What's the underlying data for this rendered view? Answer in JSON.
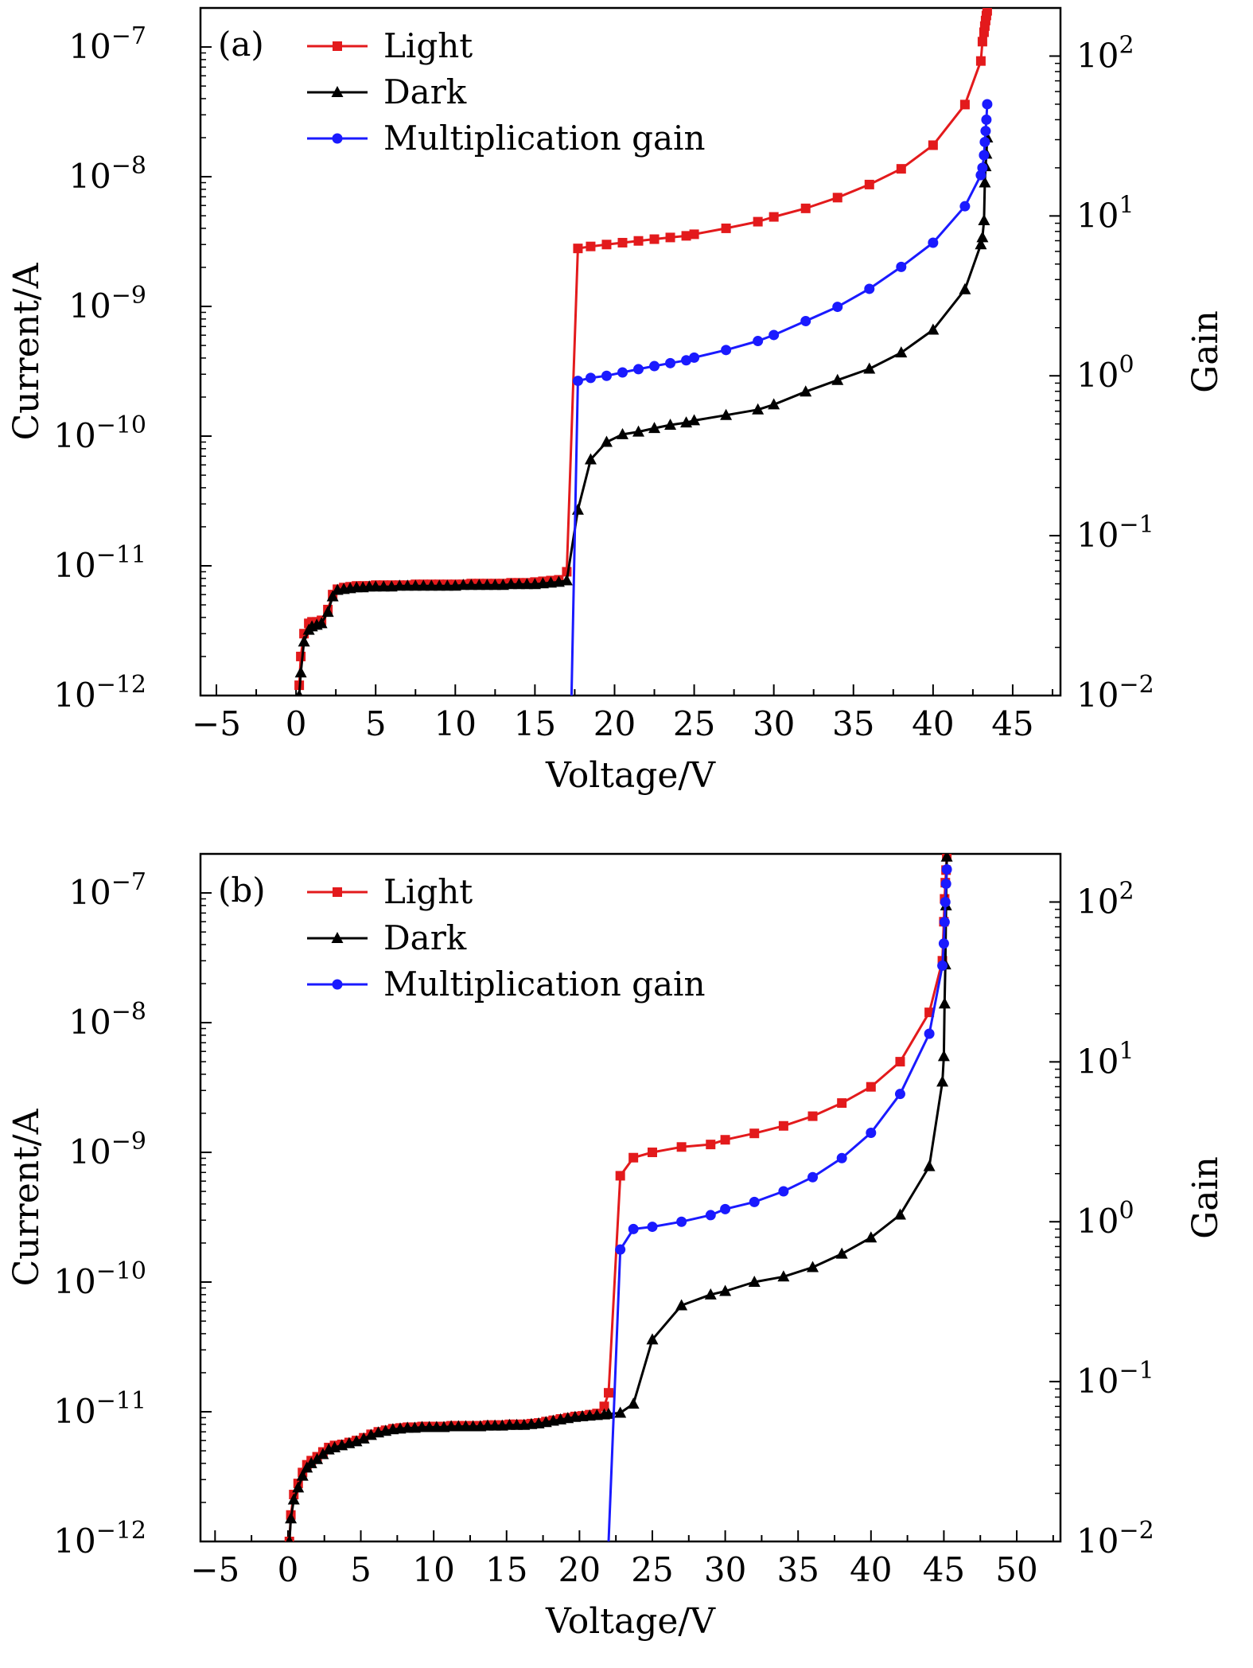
{
  "chart_data": [
    {
      "type": "line",
      "panel_label": "(a)",
      "xlabel": "Voltage/V",
      "ylabel": "Current/A",
      "y2label": "Gain",
      "xlim": [
        -6,
        48
      ],
      "xticks": [
        -5,
        0,
        5,
        10,
        15,
        20,
        25,
        30,
        35,
        40,
        45
      ],
      "xtick_labels": [
        "−5",
        "0",
        "5",
        "10",
        "15",
        "20",
        "25",
        "30",
        "35",
        "40",
        "45"
      ],
      "ylim": [
        1e-12,
        2e-07
      ],
      "yscale": "log",
      "yticks": [
        1e-12,
        1e-11,
        1e-10,
        1e-09,
        1e-08,
        1e-07
      ],
      "ytick_labels": [
        [
          "10",
          "−12"
        ],
        [
          "10",
          "−11"
        ],
        [
          "10",
          "−10"
        ],
        [
          "10",
          "−9"
        ],
        [
          "10",
          "−8"
        ],
        [
          "10",
          "−7"
        ]
      ],
      "y2lim": [
        0.01,
        200
      ],
      "y2scale": "log",
      "y2ticks": [
        0.01,
        0.1,
        1,
        10,
        100
      ],
      "y2tick_labels": [
        [
          "10",
          "−2"
        ],
        [
          "10",
          "−1"
        ],
        [
          "10",
          "0"
        ],
        [
          "10",
          "1"
        ],
        [
          "10",
          "2"
        ]
      ],
      "grid": false,
      "legend": "top-left",
      "series": [
        {
          "name": "Light",
          "color": "#e31a1c",
          "marker": "square",
          "axis": "left",
          "x": [
            0.2,
            0.3,
            0.5,
            0.8,
            1.0,
            1.3,
            1.6,
            2.0,
            2.3,
            2.6,
            3.0,
            3.4,
            3.8,
            4.2,
            4.6,
            5.0,
            5.5,
            6.0,
            6.5,
            7.0,
            7.5,
            8.0,
            8.5,
            9.0,
            9.5,
            10.0,
            10.5,
            11.0,
            11.5,
            12.0,
            12.5,
            13.0,
            13.5,
            14.0,
            14.5,
            15.0,
            15.5,
            16.0,
            16.5,
            17.0,
            17.7,
            18.5,
            19.5,
            20.5,
            21.5,
            22.5,
            23.5,
            24.5,
            25,
            27,
            29,
            30,
            32,
            34,
            36,
            38,
            40,
            42,
            43,
            43.1,
            43.2,
            43.25,
            43.3,
            43.35,
            43.4
          ],
          "y": [
            1.2e-12,
            2e-12,
            3e-12,
            3.6e-12,
            3.7e-12,
            3.7e-12,
            3.8e-12,
            4.6e-12,
            6e-12,
            6.6e-12,
            6.8e-12,
            6.9e-12,
            7e-12,
            7e-12,
            7e-12,
            7.1e-12,
            7.1e-12,
            7.1e-12,
            7.1e-12,
            7.1e-12,
            7.2e-12,
            7.2e-12,
            7.2e-12,
            7.2e-12,
            7.2e-12,
            7.2e-12,
            7.2e-12,
            7.3e-12,
            7.3e-12,
            7.3e-12,
            7.3e-12,
            7.3e-12,
            7.4e-12,
            7.4e-12,
            7.4e-12,
            7.5e-12,
            7.6e-12,
            7.7e-12,
            7.8e-12,
            9e-12,
            2.8e-09,
            2.9e-09,
            3e-09,
            3.1e-09,
            3.2e-09,
            3.3e-09,
            3.4e-09,
            3.5e-09,
            3.6e-09,
            4e-09,
            4.5e-09,
            4.9e-09,
            5.7e-09,
            6.9e-09,
            8.7e-09,
            1.15e-08,
            1.75e-08,
            3.6e-08,
            7.8e-08,
            1.1e-07,
            1.3e-07,
            1.45e-07,
            1.6e-07,
            1.75e-07,
            1.9e-07
          ]
        },
        {
          "name": "Dark",
          "color": "#000000",
          "marker": "triangle",
          "axis": "left",
          "x": [
            0.2,
            0.3,
            0.5,
            0.8,
            1.0,
            1.3,
            1.6,
            2.0,
            2.3,
            2.6,
            3.0,
            3.4,
            3.8,
            4.2,
            4.6,
            5.0,
            5.5,
            6.0,
            6.5,
            7.0,
            7.5,
            8.0,
            8.5,
            9.0,
            9.5,
            10.0,
            10.5,
            11.0,
            11.5,
            12.0,
            12.5,
            13.0,
            13.5,
            14.0,
            14.5,
            15.0,
            15.5,
            16.0,
            16.5,
            17.0,
            17.7,
            18.5,
            19.5,
            20.5,
            21.5,
            22.5,
            23.5,
            24.5,
            25,
            27,
            29,
            30,
            32,
            34,
            36,
            38,
            40,
            42,
            43,
            43.1,
            43.2,
            43.25,
            43.3,
            43.35,
            43.4
          ],
          "y": [
            1e-12,
            1.5e-12,
            2.6e-12,
            3.2e-12,
            3.4e-12,
            3.5e-12,
            3.6e-12,
            4.4e-12,
            5.8e-12,
            6.5e-12,
            6.6e-12,
            6.7e-12,
            6.8e-12,
            6.8e-12,
            6.9e-12,
            6.9e-12,
            6.9e-12,
            6.9e-12,
            7e-12,
            7e-12,
            7e-12,
            7e-12,
            7e-12,
            7e-12,
            7e-12,
            7e-12,
            7.1e-12,
            7.1e-12,
            7.1e-12,
            7.1e-12,
            7.1e-12,
            7.1e-12,
            7.2e-12,
            7.2e-12,
            7.2e-12,
            7.2e-12,
            7.3e-12,
            7.4e-12,
            7.5e-12,
            7.7e-12,
            2.7e-11,
            6.6e-11,
            9e-11,
            1.03e-10,
            1.08e-10,
            1.15e-10,
            1.22e-10,
            1.27e-10,
            1.32e-10,
            1.45e-10,
            1.6e-10,
            1.75e-10,
            2.2e-10,
            2.7e-10,
            3.3e-10,
            4.4e-10,
            6.6e-10,
            1.35e-09,
            3e-09,
            3.4e-09,
            4.6e-09,
            9e-09,
            1.2e-08,
            1.5e-08,
            2e-08
          ]
        },
        {
          "name": "Multiplication gain",
          "color": "#1a1aff",
          "marker": "circle",
          "axis": "right",
          "x": [
            17.3,
            17.7,
            18.5,
            19.5,
            20.5,
            21.5,
            22.5,
            23.5,
            24.5,
            25,
            27,
            29,
            30,
            32,
            34,
            36,
            38,
            40,
            42,
            43,
            43.1,
            43.2,
            43.25,
            43.3,
            43.35,
            43.4
          ],
          "y": [
            0.01,
            0.93,
            0.97,
            1.0,
            1.05,
            1.1,
            1.15,
            1.2,
            1.25,
            1.3,
            1.45,
            1.65,
            1.8,
            2.2,
            2.7,
            3.5,
            4.8,
            6.8,
            11.5,
            18,
            20,
            24,
            29,
            34,
            40,
            50
          ]
        }
      ]
    },
    {
      "type": "line",
      "panel_label": "(b)",
      "xlabel": "Voltage/V",
      "ylabel": "Current/A",
      "y2label": "Gain",
      "xlim": [
        -6,
        53
      ],
      "xticks": [
        -5,
        0,
        5,
        10,
        15,
        20,
        25,
        30,
        35,
        40,
        45,
        50
      ],
      "xtick_labels": [
        "−5",
        "0",
        "5",
        "10",
        "15",
        "20",
        "25",
        "30",
        "35",
        "40",
        "45",
        "50"
      ],
      "ylim": [
        1e-12,
        2e-07
      ],
      "yscale": "log",
      "yticks": [
        1e-12,
        1e-11,
        1e-10,
        1e-09,
        1e-08,
        1e-07
      ],
      "ytick_labels": [
        [
          "10",
          "−12"
        ],
        [
          "10",
          "−11"
        ],
        [
          "10",
          "−10"
        ],
        [
          "10",
          "−9"
        ],
        [
          "10",
          "−8"
        ],
        [
          "10",
          "−7"
        ]
      ],
      "y2lim": [
        0.01,
        200
      ],
      "y2scale": "log",
      "y2ticks": [
        0.01,
        0.1,
        1,
        10,
        100
      ],
      "y2tick_labels": [
        [
          "10",
          "−2"
        ],
        [
          "10",
          "−1"
        ],
        [
          "10",
          "0"
        ],
        [
          "10",
          "1"
        ],
        [
          "10",
          "2"
        ]
      ],
      "grid": false,
      "legend": "top-left",
      "series": [
        {
          "name": "Light",
          "color": "#e31a1c",
          "marker": "square",
          "axis": "left",
          "x": [
            0.1,
            0.2,
            0.4,
            0.7,
            1.0,
            1.3,
            1.6,
            2.0,
            2.4,
            2.8,
            3.2,
            3.7,
            4.2,
            4.7,
            5.2,
            5.7,
            6.2,
            6.7,
            7.2,
            7.7,
            8.2,
            8.7,
            9.2,
            9.7,
            10.2,
            10.7,
            11.2,
            11.7,
            12.2,
            12.7,
            13.2,
            13.7,
            14.2,
            14.7,
            15.2,
            15.7,
            16.2,
            16.7,
            17.2,
            17.7,
            18.2,
            18.7,
            19.2,
            19.7,
            20.2,
            20.7,
            21.2,
            21.7,
            22.0,
            22.8,
            23.7,
            25,
            27,
            29,
            30,
            32,
            34,
            36,
            38,
            40,
            42,
            44,
            44.9,
            45.0,
            45.05,
            45.1,
            45.15,
            45.2
          ],
          "y": [
            1e-12,
            1.6e-12,
            2.3e-12,
            2.8e-12,
            3.4e-12,
            3.9e-12,
            4.2e-12,
            4.5e-12,
            4.9e-12,
            5.3e-12,
            5.5e-12,
            5.6e-12,
            5.8e-12,
            6e-12,
            6.3e-12,
            6.7e-12,
            7e-12,
            7.2e-12,
            7.4e-12,
            7.5e-12,
            7.6e-12,
            7.6e-12,
            7.7e-12,
            7.7e-12,
            7.7e-12,
            7.7e-12,
            7.8e-12,
            7.8e-12,
            7.8e-12,
            7.8e-12,
            7.8e-12,
            7.9e-12,
            7.9e-12,
            7.9e-12,
            8e-12,
            8e-12,
            8e-12,
            8.1e-12,
            8.2e-12,
            8.4e-12,
            8.6e-12,
            8.8e-12,
            9e-12,
            9.2e-12,
            9.3e-12,
            9.5e-12,
            9.7e-12,
            1.1e-11,
            1.4e-11,
            6.6e-10,
            9.1e-10,
            1e-09,
            1.1e-09,
            1.15e-09,
            1.25e-09,
            1.4e-09,
            1.6e-09,
            1.9e-09,
            2.4e-09,
            3.2e-09,
            5e-09,
            1.2e-08,
            3e-08,
            6e-08,
            9e-08,
            1.2e-07,
            1.5e-07,
            1.9e-07
          ]
        },
        {
          "name": "Dark",
          "color": "#000000",
          "marker": "triangle",
          "axis": "left",
          "x": [
            0.1,
            0.2,
            0.4,
            0.7,
            1.0,
            1.3,
            1.6,
            2.0,
            2.4,
            2.8,
            3.2,
            3.7,
            4.2,
            4.7,
            5.2,
            5.7,
            6.2,
            6.7,
            7.2,
            7.7,
            8.2,
            8.7,
            9.2,
            9.7,
            10.2,
            10.7,
            11.2,
            11.7,
            12.2,
            12.7,
            13.2,
            13.7,
            14.2,
            14.7,
            15.2,
            15.7,
            16.2,
            16.7,
            17.2,
            17.7,
            18.2,
            18.7,
            19.2,
            19.7,
            20.2,
            20.7,
            21.2,
            21.7,
            22.0,
            22.8,
            23.7,
            25,
            27,
            29,
            30,
            32,
            34,
            36,
            38,
            40,
            42,
            44,
            44.9,
            45.0,
            45.05,
            45.1,
            45.15,
            45.2
          ],
          "y": [
            1e-12,
            1.5e-12,
            2.1e-12,
            2.6e-12,
            3.2e-12,
            3.7e-12,
            4e-12,
            4.3e-12,
            4.7e-12,
            5.1e-12,
            5.3e-12,
            5.5e-12,
            5.7e-12,
            5.9e-12,
            6.2e-12,
            6.6e-12,
            6.9e-12,
            7.1e-12,
            7.3e-12,
            7.4e-12,
            7.5e-12,
            7.5e-12,
            7.6e-12,
            7.6e-12,
            7.6e-12,
            7.6e-12,
            7.7e-12,
            7.7e-12,
            7.7e-12,
            7.7e-12,
            7.7e-12,
            7.8e-12,
            7.8e-12,
            7.8e-12,
            7.9e-12,
            7.9e-12,
            7.9e-12,
            8e-12,
            8.1e-12,
            8.3e-12,
            8.5e-12,
            8.7e-12,
            8.9e-12,
            9.1e-12,
            9.2e-12,
            9.3e-12,
            9.4e-12,
            9.5e-12,
            9.6e-12,
            9.8e-12,
            1.15e-11,
            3.6e-11,
            6.6e-11,
            8e-11,
            8.5e-11,
            1e-10,
            1.1e-10,
            1.3e-10,
            1.65e-10,
            2.2e-10,
            3.3e-10,
            7.8e-10,
            3.5e-09,
            5.5e-09,
            1.4e-08,
            2.8e-08,
            8e-08,
            1.9e-07
          ]
        },
        {
          "name": "Multiplication gain",
          "color": "#1a1aff",
          "marker": "circle",
          "axis": "right",
          "x": [
            22.0,
            22.8,
            23.7,
            25,
            27,
            29,
            30,
            32,
            34,
            36,
            38,
            40,
            42,
            44,
            44.9,
            45.0,
            45.05,
            45.1,
            45.15,
            45.2
          ],
          "y": [
            0.01,
            0.67,
            0.9,
            0.93,
            1.0,
            1.1,
            1.2,
            1.33,
            1.55,
            1.9,
            2.5,
            3.6,
            6.3,
            15,
            40,
            55,
            75,
            100,
            130,
            160
          ]
        }
      ]
    }
  ]
}
